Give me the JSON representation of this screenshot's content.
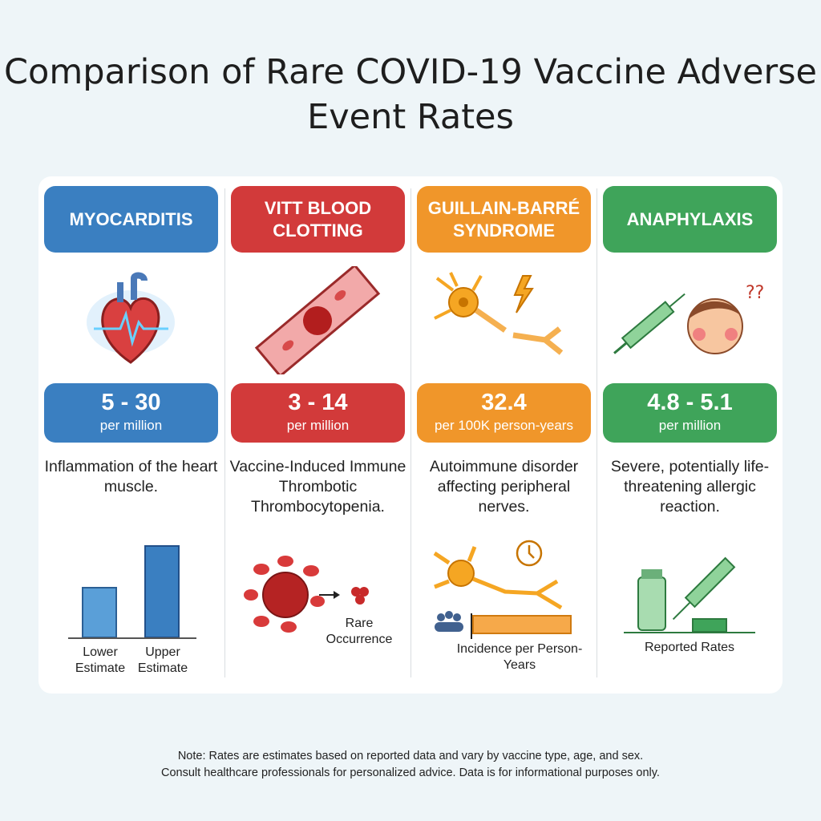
{
  "title": "Comparison of Rare COVID-19 Vaccine Adverse Event Rates",
  "colors": {
    "myocarditis": "#3a7fc1",
    "vitt": "#d23a3a",
    "gbs": "#f0962a",
    "anaphylaxis": "#3fa45a"
  },
  "columns": [
    {
      "name": "MYOCARDITIS",
      "icon": "heart-ecg-icon",
      "value": "5 - 30",
      "unit": "per million",
      "description": "Inflammation of the heart muscle.",
      "chart_labels": [
        "Lower Estimate",
        "Upper Estimate"
      ]
    },
    {
      "name": "VITT BLOOD CLOTTING",
      "icon": "blood-vessel-clot-icon",
      "value": "3 - 14",
      "unit": "per million",
      "description": "Vaccine-Induced Immune Thrombotic Thrombocytopenia.",
      "caption": "Rare Occurrence"
    },
    {
      "name": "GUILLAIN-BARRÉ SYNDROME",
      "icon": "damaged-neuron-icon",
      "value": "32.4",
      "unit": "per 100K person-years",
      "description": "Autoimmune disorder affecting peripheral nerves.",
      "caption": "Incidence per Person-Years"
    },
    {
      "name": "ANAPHYLAXIS",
      "icon": "syringe-allergic-face-icon",
      "value": "4.8 - 5.1",
      "unit": "per million",
      "description": "Severe, potentially life-threatening allergic reaction.",
      "caption": "Reported Rates"
    }
  ],
  "note": [
    "Note: Rates are estimates based on reported data and vary by vaccine type, age, and sex.",
    "Consult healthcare professionals for personalized advice. Data is for informational purposes only."
  ]
}
